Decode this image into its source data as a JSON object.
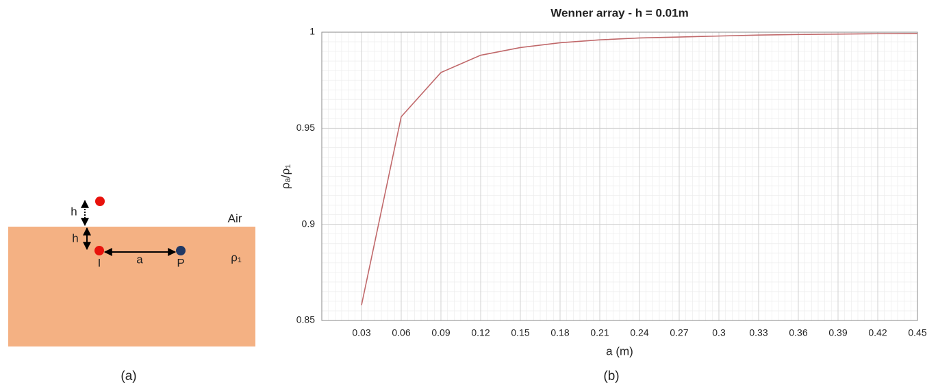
{
  "diagram": {
    "labels": {
      "h_air": "h",
      "h_ground": "h",
      "air": "Air",
      "source": "I",
      "spacing": "a",
      "probe": "P",
      "resistivity": "ρ₁"
    },
    "caption": "(a)"
  },
  "chart_data": {
    "type": "line",
    "title": "Wenner array - h = 0.01m",
    "x_label": "a (m)",
    "y_label": "ρₐ/ρ₁",
    "caption": "(b)",
    "x": [
      0.03,
      0.06,
      0.09,
      0.12,
      0.15,
      0.18,
      0.21,
      0.24,
      0.27,
      0.3,
      0.33,
      0.36,
      0.39,
      0.42,
      0.45
    ],
    "series": [
      {
        "color": "#c0686a",
        "values": [
          0.858,
          0.956,
          0.979,
          0.988,
          0.992,
          0.9945,
          0.996,
          0.997,
          0.9975,
          0.998,
          0.9985,
          0.9988,
          0.999,
          0.9992,
          0.9993
        ]
      }
    ],
    "xlim": [
      0,
      0.45
    ],
    "ylim": [
      0.85,
      1
    ],
    "xticks": [
      0.03,
      0.06,
      0.09,
      0.12,
      0.15,
      0.18,
      0.21,
      0.24,
      0.27,
      0.3,
      0.33,
      0.36,
      0.39,
      0.42,
      0.45
    ],
    "yticks": [
      0.85,
      0.9,
      0.95,
      1
    ],
    "grid": true
  }
}
